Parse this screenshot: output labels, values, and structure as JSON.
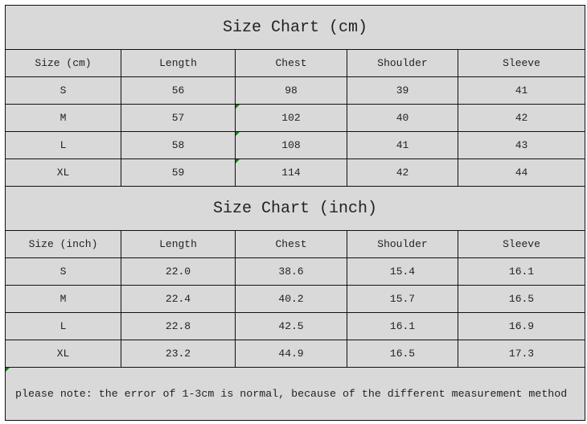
{
  "cm": {
    "title": "Size Chart (cm)",
    "headers": [
      "Size (cm)",
      "Length",
      "Chest",
      "Shoulder",
      "Sleeve"
    ],
    "rows": [
      [
        "S",
        "56",
        "98",
        "39",
        "41"
      ],
      [
        "M",
        "57",
        "102",
        "40",
        "42"
      ],
      [
        "L",
        "58",
        "108",
        "41",
        "43"
      ],
      [
        "XL",
        "59",
        "114",
        "42",
        "44"
      ]
    ]
  },
  "inch": {
    "title": "Size Chart (inch)",
    "headers": [
      "Size (inch)",
      "Length",
      "Chest",
      "Shoulder",
      "Sleeve"
    ],
    "rows": [
      [
        "S",
        "22.0",
        "38.6",
        "15.4",
        "16.1"
      ],
      [
        "M",
        "22.4",
        "40.2",
        "15.7",
        "16.5"
      ],
      [
        "L",
        "22.8",
        "42.5",
        "16.1",
        "16.9"
      ],
      [
        "XL",
        "23.2",
        "44.9",
        "16.5",
        "17.3"
      ]
    ]
  },
  "note": "please note: the error of 1-3cm is normal, because of the different measurement method"
}
